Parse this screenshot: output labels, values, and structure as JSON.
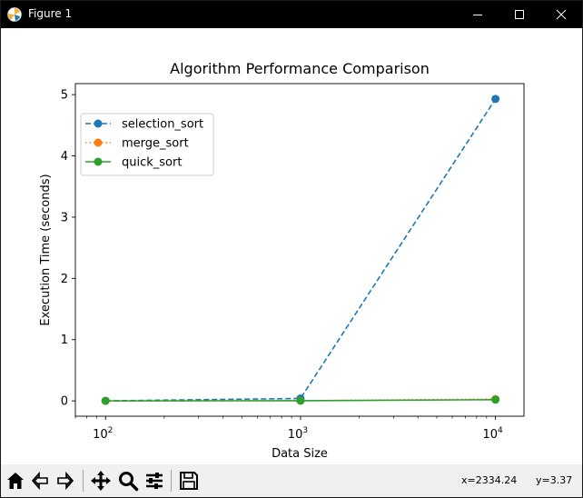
{
  "window": {
    "title": "Figure 1",
    "title_bar_color": "#000000"
  },
  "toolbar": {
    "items": [
      "home-icon",
      "back-arrow-icon",
      "forward-arrow-icon",
      "pan-move-icon",
      "zoom-magnifier-icon",
      "configure-subplots-icon",
      "save-floppy-icon"
    ],
    "x_readout": "x=2334.24",
    "y_readout": "y=3.37"
  },
  "chart_data": {
    "type": "line",
    "title": "Algorithm Performance Comparison",
    "xlabel": "Data Size",
    "ylabel": "Execution Time (seconds)",
    "x_scale": "log",
    "x": [
      100,
      1000,
      10000
    ],
    "x_ticks": [
      {
        "base": "10",
        "exp": "2"
      },
      {
        "base": "10",
        "exp": "3"
      },
      {
        "base": "10",
        "exp": "4"
      }
    ],
    "y_ticks": [
      "0",
      "1",
      "2",
      "3",
      "4",
      "5"
    ],
    "ylim": [
      -0.25,
      5.18
    ],
    "xlim": [
      70,
      14000
    ],
    "grid": false,
    "legend_position": "upper left",
    "series": [
      {
        "name": "selection_sort",
        "values": [
          0.001,
          0.04,
          4.93
        ],
        "color": "#1f77b4",
        "style": "dashed"
      },
      {
        "name": "merge_sort",
        "values": [
          0.0005,
          0.004,
          0.03
        ],
        "color": "#ff7f0e",
        "style": "dotted"
      },
      {
        "name": "quick_sort",
        "values": [
          0.0003,
          0.003,
          0.02
        ],
        "color": "#2ca02c",
        "style": "solid"
      }
    ]
  }
}
